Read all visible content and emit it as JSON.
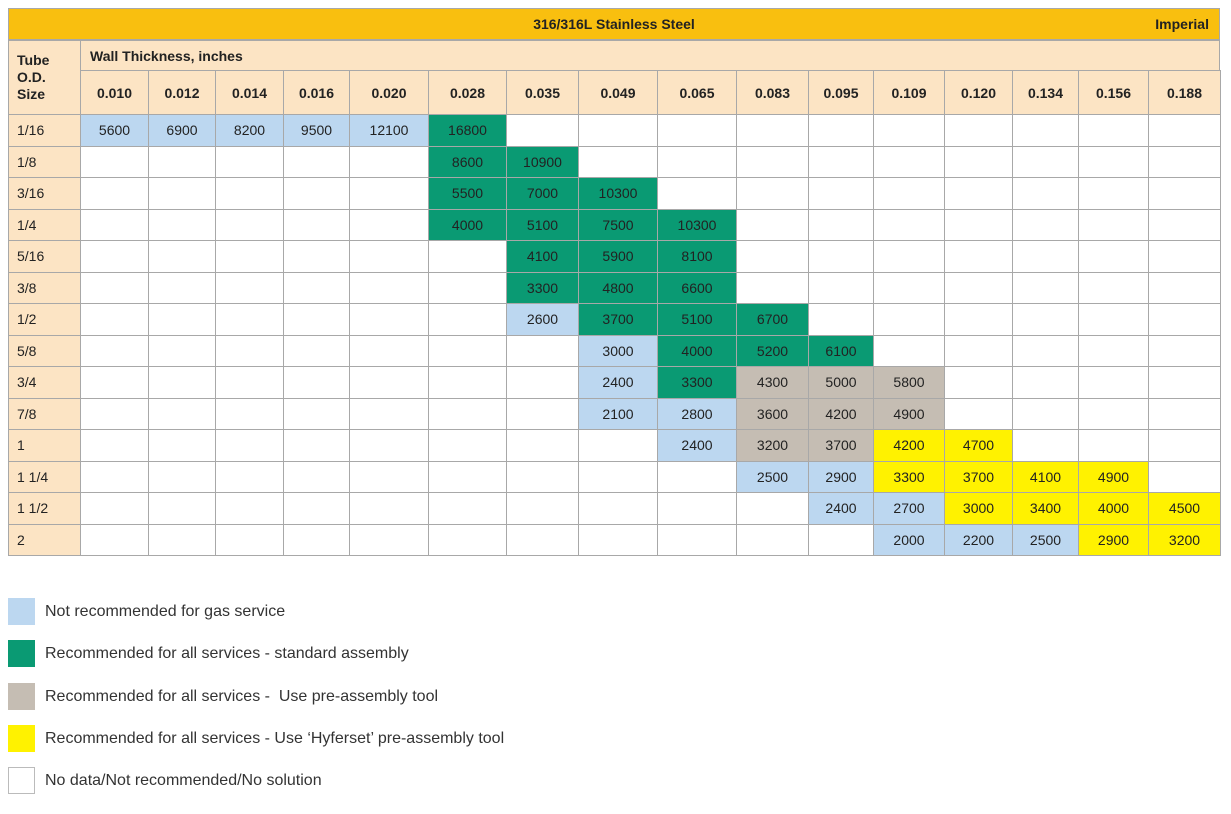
{
  "title": "316/316L Stainless Steel",
  "unit_system": "Imperial",
  "row_header": "Tube O.D. Size",
  "column_group_header": "Wall Thickness, inches",
  "columns": [
    "0.010",
    "0.012",
    "0.014",
    "0.016",
    "0.020",
    "0.028",
    "0.035",
    "0.049",
    "0.065",
    "0.083",
    "0.095",
    "0.109",
    "0.120",
    "0.134",
    "0.156",
    "0.188"
  ],
  "rows": [
    {
      "label": "1/16",
      "cells": [
        {
          "value": 5600,
          "color": "#bcd7f0"
        },
        {
          "value": 6900,
          "color": "#bcd7f0"
        },
        {
          "value": 8200,
          "color": "#bcd7f0"
        },
        {
          "value": 9500,
          "color": "#bcd7f0"
        },
        {
          "value": 12100,
          "color": "#bcd7f0"
        },
        {
          "value": 16800,
          "color": "#0a9a73"
        },
        null,
        null,
        null,
        null,
        null,
        null,
        null,
        null,
        null,
        null
      ]
    },
    {
      "label": "1/8",
      "cells": [
        null,
        null,
        null,
        null,
        null,
        {
          "value": 8600,
          "color": "#0a9a73"
        },
        {
          "value": 10900,
          "color": "#0a9a73"
        },
        null,
        null,
        null,
        null,
        null,
        null,
        null,
        null,
        null
      ]
    },
    {
      "label": "3/16",
      "cells": [
        null,
        null,
        null,
        null,
        null,
        {
          "value": 5500,
          "color": "#0a9a73"
        },
        {
          "value": 7000,
          "color": "#0a9a73"
        },
        {
          "value": 10300,
          "color": "#0a9a73"
        },
        null,
        null,
        null,
        null,
        null,
        null,
        null,
        null
      ]
    },
    {
      "label": "1/4",
      "cells": [
        null,
        null,
        null,
        null,
        null,
        {
          "value": 4000,
          "color": "#0a9a73"
        },
        {
          "value": 5100,
          "color": "#0a9a73"
        },
        {
          "value": 7500,
          "color": "#0a9a73"
        },
        {
          "value": 10300,
          "color": "#0a9a73"
        },
        null,
        null,
        null,
        null,
        null,
        null,
        null
      ]
    },
    {
      "label": "5/16",
      "cells": [
        null,
        null,
        null,
        null,
        null,
        null,
        {
          "value": 4100,
          "color": "#0a9a73"
        },
        {
          "value": 5900,
          "color": "#0a9a73"
        },
        {
          "value": 8100,
          "color": "#0a9a73"
        },
        null,
        null,
        null,
        null,
        null,
        null,
        null
      ]
    },
    {
      "label": "3/8",
      "cells": [
        null,
        null,
        null,
        null,
        null,
        null,
        {
          "value": 3300,
          "color": "#0a9a73"
        },
        {
          "value": 4800,
          "color": "#0a9a73"
        },
        {
          "value": 6600,
          "color": "#0a9a73"
        },
        null,
        null,
        null,
        null,
        null,
        null,
        null
      ]
    },
    {
      "label": "1/2",
      "cells": [
        null,
        null,
        null,
        null,
        null,
        null,
        {
          "value": 2600,
          "color": "#bcd7f0"
        },
        {
          "value": 3700,
          "color": "#0a9a73"
        },
        {
          "value": 5100,
          "color": "#0a9a73"
        },
        {
          "value": 6700,
          "color": "#0a9a73"
        },
        null,
        null,
        null,
        null,
        null,
        null
      ]
    },
    {
      "label": "5/8",
      "cells": [
        null,
        null,
        null,
        null,
        null,
        null,
        null,
        {
          "value": 3000,
          "color": "#bcd7f0"
        },
        {
          "value": 4000,
          "color": "#0a9a73"
        },
        {
          "value": 5200,
          "color": "#0a9a73"
        },
        {
          "value": 6100,
          "color": "#0a9a73"
        },
        null,
        null,
        null,
        null,
        null
      ]
    },
    {
      "label": "3/4",
      "cells": [
        null,
        null,
        null,
        null,
        null,
        null,
        null,
        {
          "value": 2400,
          "color": "#bcd7f0"
        },
        {
          "value": 3300,
          "color": "#0a9a73"
        },
        {
          "value": 4300,
          "color": "#c5bdb3"
        },
        {
          "value": 5000,
          "color": "#c5bdb3"
        },
        {
          "value": 5800,
          "color": "#c5bdb3"
        },
        null,
        null,
        null,
        null
      ]
    },
    {
      "label": "7/8",
      "cells": [
        null,
        null,
        null,
        null,
        null,
        null,
        null,
        {
          "value": 2100,
          "color": "#bcd7f0"
        },
        {
          "value": 2800,
          "color": "#bcd7f0"
        },
        {
          "value": 3600,
          "color": "#c5bdb3"
        },
        {
          "value": 4200,
          "color": "#c5bdb3"
        },
        {
          "value": 4900,
          "color": "#c5bdb3"
        },
        null,
        null,
        null,
        null
      ]
    },
    {
      "label": "1",
      "cells": [
        null,
        null,
        null,
        null,
        null,
        null,
        null,
        null,
        {
          "value": 2400,
          "color": "#bcd7f0"
        },
        {
          "value": 3200,
          "color": "#c5bdb3"
        },
        {
          "value": 3700,
          "color": "#c5bdb3"
        },
        {
          "value": 4200,
          "color": "#fff200"
        },
        {
          "value": 4700,
          "color": "#fff200"
        },
        null,
        null,
        null
      ]
    },
    {
      "label": "1 1/4",
      "cells": [
        null,
        null,
        null,
        null,
        null,
        null,
        null,
        null,
        null,
        {
          "value": 2500,
          "color": "#bcd7f0"
        },
        {
          "value": 2900,
          "color": "#bcd7f0"
        },
        {
          "value": 3300,
          "color": "#fff200"
        },
        {
          "value": 3700,
          "color": "#fff200"
        },
        {
          "value": 4100,
          "color": "#fff200"
        },
        {
          "value": 4900,
          "color": "#fff200"
        },
        null
      ]
    },
    {
      "label": "1 1/2",
      "cells": [
        null,
        null,
        null,
        null,
        null,
        null,
        null,
        null,
        null,
        null,
        {
          "value": 2400,
          "color": "#bcd7f0"
        },
        {
          "value": 2700,
          "color": "#bcd7f0"
        },
        {
          "value": 3000,
          "color": "#fff200"
        },
        {
          "value": 3400,
          "color": "#fff200"
        },
        {
          "value": 4000,
          "color": "#fff200"
        },
        {
          "value": 4500,
          "color": "#fff200"
        }
      ]
    },
    {
      "label": "2",
      "cells": [
        null,
        null,
        null,
        null,
        null,
        null,
        null,
        null,
        null,
        null,
        null,
        {
          "value": 2000,
          "color": "#bcd7f0"
        },
        {
          "value": 2200,
          "color": "#bcd7f0"
        },
        {
          "value": 2500,
          "color": "#bcd7f0"
        },
        {
          "value": 2900,
          "color": "#fff200"
        },
        {
          "value": 3200,
          "color": "#fff200"
        }
      ]
    }
  ],
  "legend": [
    {
      "label": "Not recommended for gas service",
      "color": "#bcd7f0"
    },
    {
      "label": "Recommended for all services - standard assembly",
      "color": "#0a9a73"
    },
    {
      "label": "Recommended for all services -  Use pre-assembly tool",
      "color": "#c5bdb3"
    },
    {
      "label": "Recommended for all services - Use ‘Hyferset’ pre-assembly tool",
      "color": "#fff200"
    },
    {
      "label": "No data/Not recommended/No solution",
      "color": "#ffffff"
    }
  ]
}
